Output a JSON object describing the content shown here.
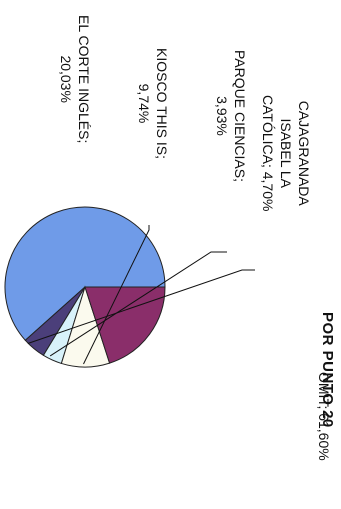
{
  "chart_data": {
    "type": "pie",
    "title": "POR PUNTO 20",
    "slices": [
      {
        "label_lines": [
          "OMIT; 61,60%"
        ],
        "name": "OMIT",
        "value": 61.6,
        "color": "#6f9be8"
      },
      {
        "label_lines": [
          "CAJAGRANADA",
          "ISABEL LA",
          "CATÓLICA; 4,70%"
        ],
        "name": "CAJAGRANADA ISABEL LA CATÓLICA",
        "value": 4.7,
        "color": "#4b3f7a"
      },
      {
        "label_lines": [
          "PARQUE CIENCIAS;",
          "3,93%"
        ],
        "name": "PARQUE CIENCIAS",
        "value": 3.93,
        "color": "#d8f2fa"
      },
      {
        "label_lines": [
          "KIOSCO THIS IS;",
          "9,74%"
        ],
        "name": "KIOSCO THIS IS",
        "value": 9.74,
        "color": "#fbfaee"
      },
      {
        "label_lines": [
          "EL CORTE INGLÉS;",
          "20,03%"
        ],
        "name": "EL CORTE INGLÉS",
        "value": 20.03,
        "color": "#8a2e6a"
      }
    ]
  }
}
